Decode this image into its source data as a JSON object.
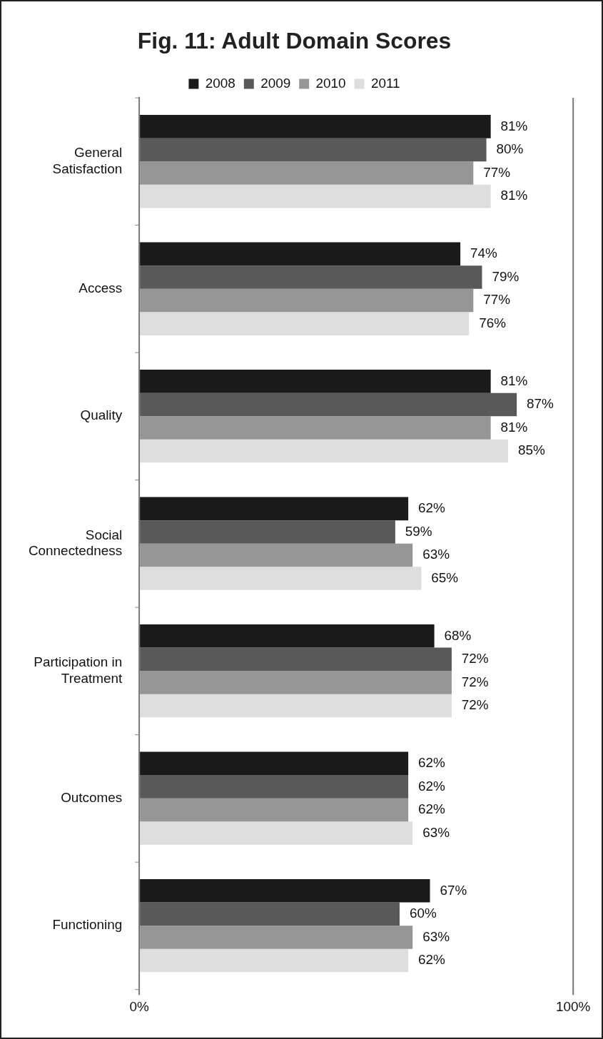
{
  "chart_data": {
    "type": "bar",
    "orientation": "horizontal",
    "title": "Fig. 11: Adult Domain Scores",
    "categories": [
      "General Satisfaction",
      "Access",
      "Quality",
      "Social Connectedness",
      "Participation in Treatment",
      "Outcomes",
      "Functioning"
    ],
    "series": [
      {
        "name": "2008",
        "color": "#1a1a1a",
        "values": [
          81,
          74,
          81,
          62,
          68,
          62,
          67
        ],
        "value_labels": [
          "81%",
          "74%",
          "81%",
          "62%",
          "68%",
          "62%",
          "67%"
        ]
      },
      {
        "name": "2009",
        "color": "#595959",
        "values": [
          80,
          79,
          87,
          59,
          72,
          62,
          60
        ],
        "value_labels": [
          "80%",
          "79%",
          "87%",
          "59%",
          "72%",
          "62%",
          "60%"
        ]
      },
      {
        "name": "2010",
        "color": "#969696",
        "values": [
          77,
          77,
          81,
          63,
          72,
          62,
          63
        ],
        "value_labels": [
          "77%",
          "77%",
          "81%",
          "63%",
          "72%",
          "62%",
          "63%"
        ]
      },
      {
        "name": "2011",
        "color": "#dedede",
        "values": [
          81,
          76,
          85,
          65,
          72,
          63,
          62
        ],
        "value_labels": [
          "81%",
          "76%",
          "85%",
          "65%",
          "72%",
          "63%",
          "62%"
        ]
      }
    ],
    "xlim": [
      0,
      100
    ],
    "xticks": [
      {
        "value": 0,
        "label": "0%"
      },
      {
        "value": 100,
        "label": "100%"
      }
    ],
    "legend": "top"
  }
}
